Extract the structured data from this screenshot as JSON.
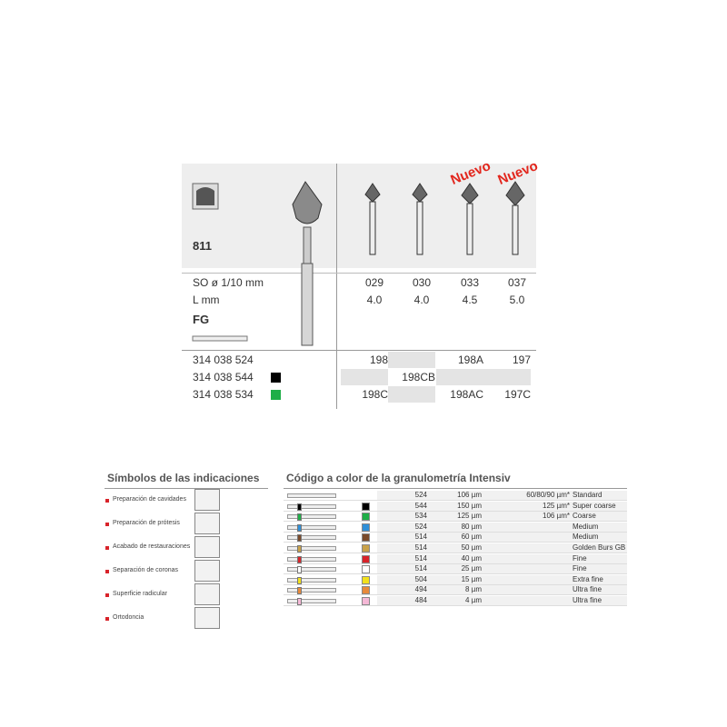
{
  "product": {
    "number": "811",
    "shank": "FG",
    "new_badges": [
      "Nuevo",
      "Nuevo"
    ],
    "specs": [
      {
        "label": "SO ø 1/10 mm",
        "values": [
          "029",
          "030",
          "033",
          "037"
        ]
      },
      {
        "label": "L mm",
        "values": [
          "4.0",
          "4.0",
          "4.5",
          "5.0"
        ]
      }
    ],
    "rows": [
      {
        "code": "314 038 524",
        "cells": [
          "198",
          null,
          "198A",
          "197"
        ]
      },
      {
        "code": "314 038 544",
        "color": "#000000",
        "cells": [
          null,
          "198CB",
          null,
          null
        ]
      },
      {
        "code": "314 038 534",
        "color": "#1fae48",
        "cells": [
          "198C",
          null,
          "198AC",
          "197C"
        ]
      }
    ]
  },
  "indications": {
    "title": "Símbolos de las indicaciones",
    "items": [
      "Preparación de cavidades",
      "Preparación de prótesis",
      "Acabado de restauraciones",
      "Separación de coronas",
      "Superficie radicular",
      "Ortodoncia"
    ]
  },
  "grit_table": {
    "title": "Código a color de la granulometría Intensiv",
    "rows": [
      {
        "code": "524",
        "size": "106 µm",
        "extra": "60/80/90 µm*",
        "name": "Standard",
        "color": null
      },
      {
        "code": "544",
        "size": "150 µm",
        "extra": "125 µm*",
        "name": "Super coarse",
        "color": "#000000"
      },
      {
        "code": "534",
        "size": "125 µm",
        "extra": "106 µm*",
        "name": "Coarse",
        "color": "#1fae48"
      },
      {
        "code": "524",
        "size": "80 µm",
        "extra": null,
        "name": "Medium",
        "color": "#2f8fd8"
      },
      {
        "code": "514",
        "size": "60 µm",
        "extra": null,
        "name": "Medium",
        "color": "#7a4a2a"
      },
      {
        "code": "514",
        "size": "50 µm",
        "extra": null,
        "name": "Golden Burs GB",
        "color": "#c9a24a"
      },
      {
        "code": "514",
        "size": "40 µm",
        "extra": null,
        "name": "Fine",
        "color": "#d8232a"
      },
      {
        "code": "514",
        "size": "25 µm",
        "extra": null,
        "name": "Fine",
        "color": "#ffffff"
      },
      {
        "code": "504",
        "size": "15 µm",
        "extra": null,
        "name": "Extra fine",
        "color": "#f2e01c"
      },
      {
        "code": "494",
        "size": "8 µm",
        "extra": null,
        "name": "Ultra fine",
        "color": "#e88a3a"
      },
      {
        "code": "484",
        "size": "4 µm",
        "extra": null,
        "name": "Ultra fine",
        "color": "#f5b8d6"
      }
    ]
  }
}
